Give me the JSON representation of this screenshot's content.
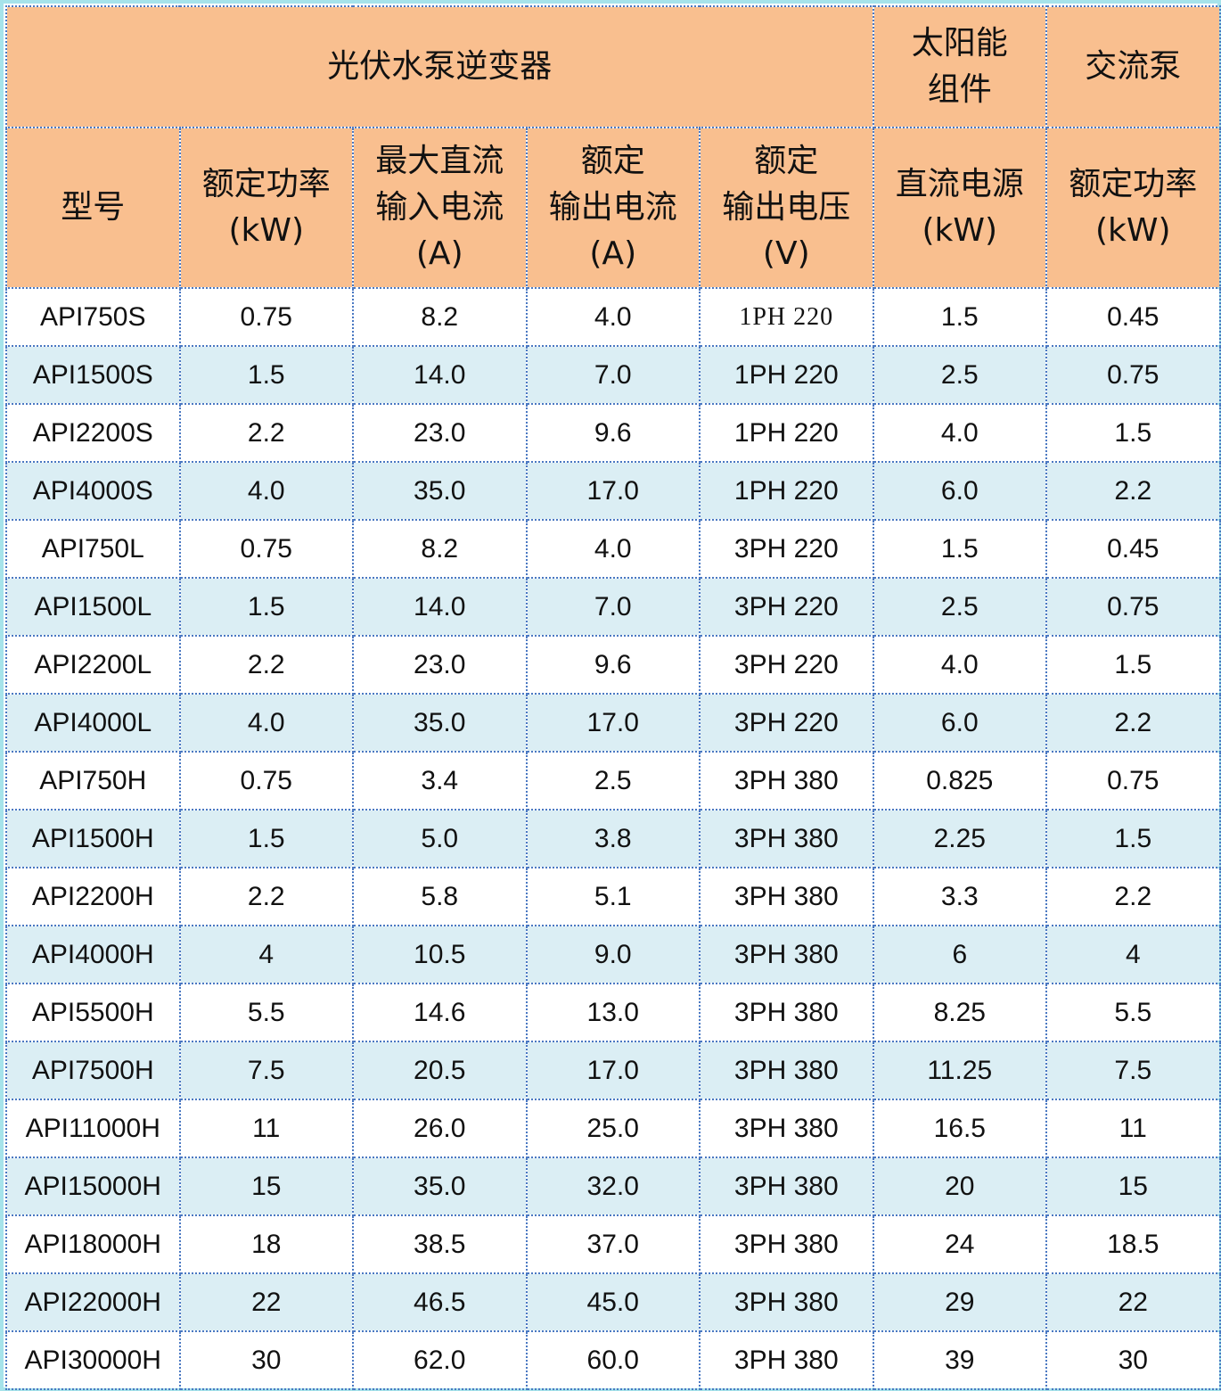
{
  "header_groups": {
    "inverter": "光伏水泵逆变器",
    "solar_line1": "太阳能",
    "solar_line2": "组件",
    "ac_pump": "交流泵"
  },
  "columns": [
    {
      "line1": "型号",
      "line2": "",
      "line3": ""
    },
    {
      "line1": "额定功率",
      "line2": "(kW)",
      "line3": ""
    },
    {
      "line1": "最大直流",
      "line2": "输入电流",
      "line3": "(A)"
    },
    {
      "line1": "额定",
      "line2": "输出电流",
      "line3": "(A)"
    },
    {
      "line1": "额定",
      "line2": "输出电压",
      "line3": "(V)"
    },
    {
      "line1": "直流电源",
      "line2": "(kW)",
      "line3": ""
    },
    {
      "line1": "额定功率",
      "line2": "(kW)",
      "line3": ""
    }
  ],
  "rows": [
    [
      "API750S",
      "0.75",
      "8.2",
      "4.0",
      "1PH 220",
      "1.5",
      "0.45"
    ],
    [
      "API1500S",
      "1.5",
      "14.0",
      "7.0",
      "1PH 220",
      "2.5",
      "0.75"
    ],
    [
      "API2200S",
      "2.2",
      "23.0",
      "9.6",
      "1PH 220",
      "4.0",
      "1.5"
    ],
    [
      "API4000S",
      "4.0",
      "35.0",
      "17.0",
      "1PH 220",
      "6.0",
      "2.2"
    ],
    [
      "API750L",
      "0.75",
      "8.2",
      "4.0",
      "3PH 220",
      "1.5",
      "0.45"
    ],
    [
      "API1500L",
      "1.5",
      "14.0",
      "7.0",
      "3PH 220",
      "2.5",
      "0.75"
    ],
    [
      "API2200L",
      "2.2",
      "23.0",
      "9.6",
      "3PH 220",
      "4.0",
      "1.5"
    ],
    [
      "API4000L",
      "4.0",
      "35.0",
      "17.0",
      "3PH 220",
      "6.0",
      "2.2"
    ],
    [
      "API750H",
      "0.75",
      "3.4",
      "2.5",
      "3PH 380",
      "0.825",
      "0.75"
    ],
    [
      "API1500H",
      "1.5",
      "5.0",
      "3.8",
      "3PH 380",
      "2.25",
      "1.5"
    ],
    [
      "API2200H",
      "2.2",
      "5.8",
      "5.1",
      "3PH 380",
      "3.3",
      "2.2"
    ],
    [
      "API4000H",
      "4",
      "10.5",
      "9.0",
      "3PH 380",
      "6",
      "4"
    ],
    [
      "API5500H",
      "5.5",
      "14.6",
      "13.0",
      "3PH 380",
      "8.25",
      "5.5"
    ],
    [
      "API7500H",
      "7.5",
      "20.5",
      "17.0",
      "3PH 380",
      "11.25",
      "7.5"
    ],
    [
      "API11000H",
      "11",
      "26.0",
      "25.0",
      "3PH 380",
      "16.5",
      "11"
    ],
    [
      "API15000H",
      "15",
      "35.0",
      "32.0",
      "3PH 380",
      "20",
      "15"
    ],
    [
      "API18000H",
      "18",
      "38.5",
      "37.0",
      "3PH 380",
      "24",
      "18.5"
    ],
    [
      "API22000H",
      "22",
      "46.5",
      "45.0",
      "3PH 380",
      "29",
      "22"
    ],
    [
      "API30000H",
      "30",
      "62.0",
      "60.0",
      "3PH 380",
      "39",
      "30"
    ]
  ],
  "colors": {
    "header_bg": "#f9bf8f",
    "stripe_bg": "#dbeef4",
    "grid_line": "#4a78c2",
    "outer_border": "#a6e3ea"
  }
}
